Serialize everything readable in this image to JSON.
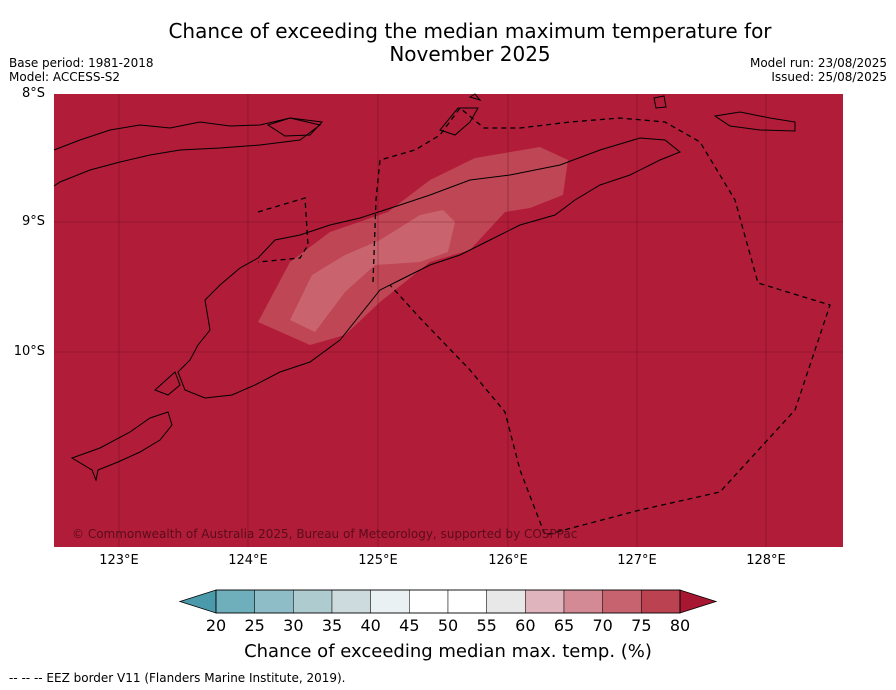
{
  "title": {
    "line1": "Chance of exceeding the median maximum temperature for",
    "line2": "November 2025"
  },
  "meta_left": {
    "base_period": "Base period: 1981-2018",
    "model": "Model: ACCESS-S2"
  },
  "meta_right": {
    "model_run": "Model run: 23/08/2025",
    "issued": "Issued: 25/08/2025"
  },
  "map": {
    "extent": {
      "lon_min": 122.5,
      "lon_max": 128.6,
      "lat_min": -11.5,
      "lat_max": -8.0
    },
    "background_color": "#b11c38",
    "latitude_labels": [
      "8°S",
      "9°S",
      "10°S"
    ],
    "longitude_labels": [
      "123°E",
      "124°E",
      "125°E",
      "126°E",
      "127°E",
      "128°E"
    ],
    "copyright": "© Commonwealth of Australia 2025, Bureau of Meteorology, supported by COSPPac"
  },
  "colorbar": {
    "title": "Chance of exceeding median max. temp. (%)",
    "ticks": [
      "20",
      "25",
      "30",
      "35",
      "40",
      "45",
      "50",
      "55",
      "60",
      "65",
      "70",
      "75",
      "80"
    ],
    "colors": [
      "#4a9aab",
      "#6faebb",
      "#8fbdc7",
      "#aecbd0",
      "#cddbde",
      "#eaf1f2",
      "#ffffff",
      "#ffffff",
      "#e8e8e8",
      "#e0b4bc",
      "#d48a95",
      "#c7636f",
      "#bb4251",
      "#a81732"
    ]
  },
  "footer": "--  --  -- EEZ border V11 (Flanders Marine Institute, 2019)."
}
